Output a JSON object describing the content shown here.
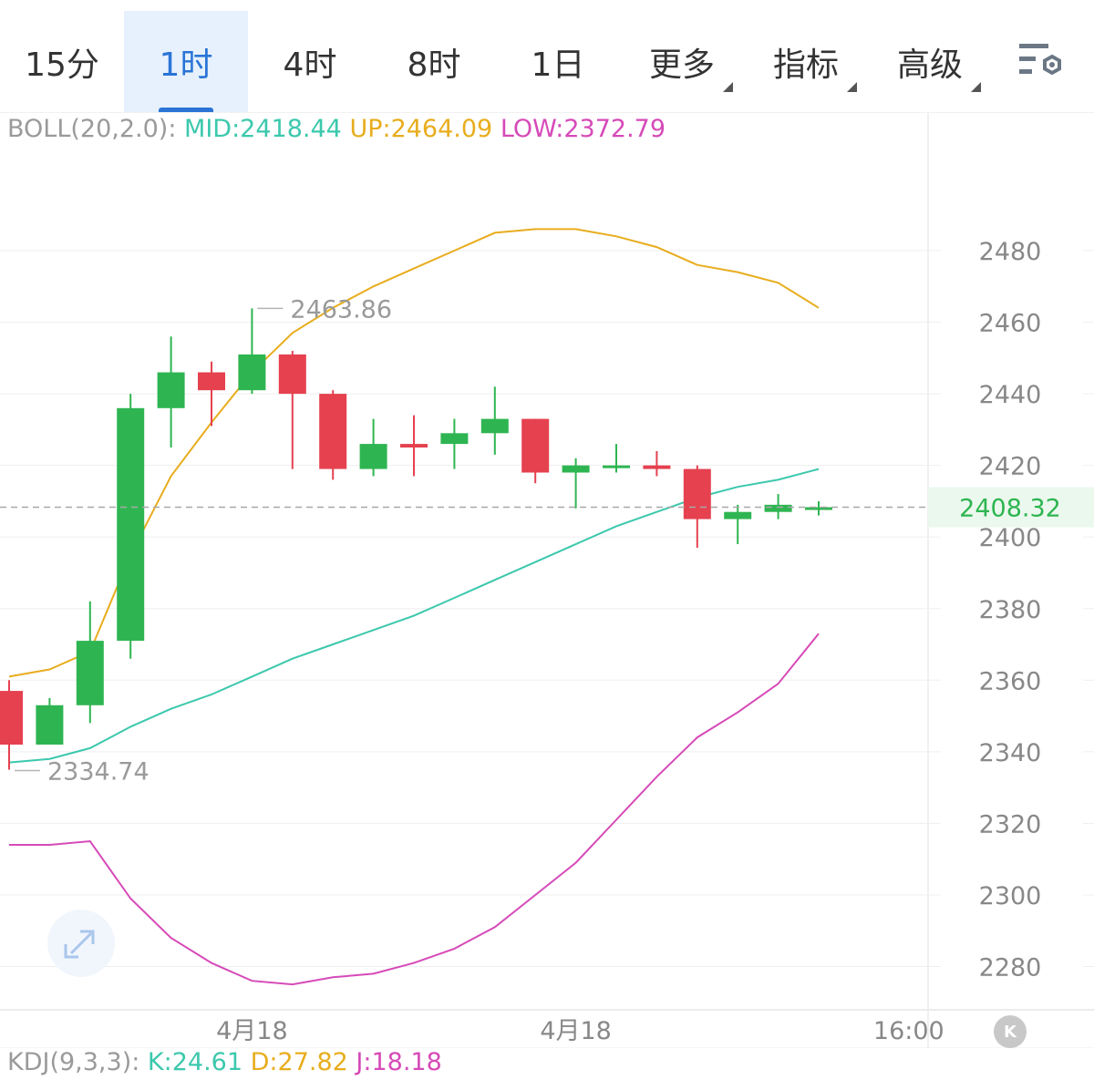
{
  "tabs": [
    {
      "label": "15分",
      "active": false,
      "dropdown": false
    },
    {
      "label": "1时",
      "active": true,
      "dropdown": false
    },
    {
      "label": "4时",
      "active": false,
      "dropdown": false
    },
    {
      "label": "8时",
      "active": false,
      "dropdown": false
    },
    {
      "label": "1日",
      "active": false,
      "dropdown": false
    },
    {
      "label": "更多",
      "active": false,
      "dropdown": true
    },
    {
      "label": "指标",
      "active": false,
      "dropdown": true
    },
    {
      "label": "高级",
      "active": false,
      "dropdown": true
    }
  ],
  "settings_icon": "chart-settings-gear-icon",
  "boll": {
    "name": "BOLL(20,2.0):",
    "mid": "MID:2418.44",
    "up": "UP:2464.09",
    "low": "LOW:2372.79"
  },
  "kdj": {
    "name": "KDJ(9,3,3):",
    "k": "K:24.61",
    "d": "D:27.82",
    "j": "J:18.18"
  },
  "colors": {
    "up": "#2eb551",
    "down": "#e5414f",
    "mid": "#3cc8ad",
    "upper": "#e8ad1e",
    "lower": "#d64ab8",
    "price_tag": "#2eb551",
    "grid": "#efefef"
  },
  "icons": {
    "expand": "expand-arrows-icon",
    "kline_badge": "k-badge-icon"
  },
  "kline_badge_label": "K",
  "chart_data": {
    "type": "candlestick",
    "y_axis": {
      "min": 2270,
      "max": 2490,
      "ticks": [
        2480,
        2460,
        2440,
        2420,
        2400,
        2380,
        2360,
        2340,
        2320,
        2300,
        2280
      ]
    },
    "x_labels": [
      {
        "label": "4月18",
        "index": 6
      },
      {
        "label": "4月18",
        "index": 14
      },
      {
        "label": "16:00",
        "index": 22
      }
    ],
    "current_price": "2408.32",
    "annotations": [
      {
        "label": "2463.86",
        "value": 2463.86,
        "index": 6
      },
      {
        "label": "2334.74",
        "value": 2334.74,
        "index": 0
      }
    ],
    "candles": [
      {
        "o": 2357,
        "h": 2360,
        "l": 2335,
        "c": 2342
      },
      {
        "o": 2342,
        "h": 2355,
        "l": 2342,
        "c": 2353
      },
      {
        "o": 2353,
        "h": 2382,
        "l": 2348,
        "c": 2371
      },
      {
        "o": 2371,
        "h": 2440,
        "l": 2366,
        "c": 2436
      },
      {
        "o": 2436,
        "h": 2456,
        "l": 2425,
        "c": 2446
      },
      {
        "o": 2446,
        "h": 2449,
        "l": 2431,
        "c": 2441
      },
      {
        "o": 2441,
        "h": 2463.86,
        "l": 2440,
        "c": 2451
      },
      {
        "o": 2451,
        "h": 2452,
        "l": 2419,
        "c": 2440
      },
      {
        "o": 2440,
        "h": 2441,
        "l": 2416,
        "c": 2419
      },
      {
        "o": 2419,
        "h": 2433,
        "l": 2417,
        "c": 2426
      },
      {
        "o": 2426,
        "h": 2434,
        "l": 2417,
        "c": 2425
      },
      {
        "o": 2426,
        "h": 2433,
        "l": 2419,
        "c": 2429
      },
      {
        "o": 2429,
        "h": 2442,
        "l": 2423,
        "c": 2433
      },
      {
        "o": 2433,
        "h": 2433,
        "l": 2415,
        "c": 2418
      },
      {
        "o": 2418,
        "h": 2422,
        "l": 2408,
        "c": 2420
      },
      {
        "o": 2420,
        "h": 2426,
        "l": 2418,
        "c": 2420
      },
      {
        "o": 2420,
        "h": 2424,
        "l": 2417,
        "c": 2419
      },
      {
        "o": 2419,
        "h": 2420,
        "l": 2397,
        "c": 2405
      },
      {
        "o": 2405,
        "h": 2409,
        "l": 2398,
        "c": 2407
      },
      {
        "o": 2407,
        "h": 2412,
        "l": 2405,
        "c": 2409
      },
      {
        "o": 2408,
        "h": 2410,
        "l": 2406,
        "c": 2408.32
      }
    ],
    "series": [
      {
        "name": "MID",
        "values": [
          2337,
          2338,
          2341,
          2347,
          2352,
          2356,
          2361,
          2366,
          2370,
          2374,
          2378,
          2383,
          2388,
          2393,
          2398,
          2403,
          2407,
          2411,
          2414,
          2416,
          2419
        ]
      },
      {
        "name": "UP",
        "values": [
          2361,
          2363,
          2368,
          2395,
          2417,
          2432,
          2446,
          2457,
          2464,
          2470,
          2475,
          2480,
          2485,
          2486,
          2486,
          2484,
          2481,
          2476,
          2474,
          2471,
          2464
        ]
      },
      {
        "name": "LOW",
        "values": [
          2314,
          2314,
          2315,
          2299,
          2288,
          2281,
          2276,
          2275,
          2277,
          2278,
          2281,
          2285,
          2291,
          2300,
          2309,
          2321,
          2333,
          2344,
          2351,
          2359,
          2373
        ]
      }
    ]
  }
}
